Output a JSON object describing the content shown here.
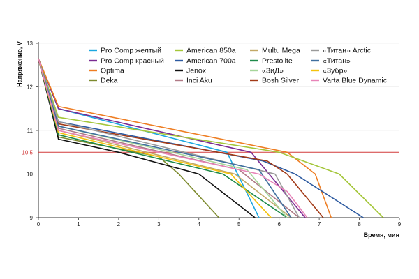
{
  "chart_data": {
    "type": "line",
    "title": "",
    "xlabel": "Время, мин",
    "ylabel": "Напряжение, V",
    "xlim": [
      0,
      9
    ],
    "ylim": [
      9,
      13
    ],
    "xticks": [
      "0",
      "1",
      "2",
      "3",
      "4",
      "5",
      "6",
      "7",
      "8",
      "9"
    ],
    "yticks": [
      "9",
      "10",
      "11",
      "12",
      "13"
    ],
    "reference_line": {
      "y": 10.5,
      "label": "10,5",
      "color": "#d23a3a"
    },
    "legend_position": "top-center",
    "series": [
      {
        "name": "Pro Comp желтый",
        "color": "#1ba7e0",
        "points": [
          [
            0,
            12.65
          ],
          [
            0.5,
            11.5
          ],
          [
            4.7,
            10.5
          ],
          [
            5.5,
            9
          ]
        ]
      },
      {
        "name": "Pro Comp красный",
        "color": "#7b2b92",
        "points": [
          [
            0,
            12.65
          ],
          [
            0.5,
            11.5
          ],
          [
            5.3,
            10.5
          ],
          [
            6.65,
            9
          ]
        ]
      },
      {
        "name": "Optima",
        "color": "#ee7d22",
        "points": [
          [
            0,
            12.65
          ],
          [
            0.5,
            11.55
          ],
          [
            6.2,
            10.5
          ],
          [
            6.9,
            10
          ],
          [
            7.3,
            9
          ]
        ]
      },
      {
        "name": "Deka",
        "color": "#7d8a2e",
        "points": [
          [
            0,
            12.65
          ],
          [
            0.5,
            10.85
          ],
          [
            3.0,
            10.4
          ],
          [
            3.5,
            10
          ],
          [
            4.5,
            9
          ]
        ]
      },
      {
        "name": "American 850a",
        "color": "#a4c639",
        "points": [
          [
            0,
            12.65
          ],
          [
            0.5,
            11.3
          ],
          [
            6.0,
            10.5
          ],
          [
            7.5,
            10
          ],
          [
            8.6,
            9
          ]
        ]
      },
      {
        "name": "American 700a",
        "color": "#2d5aa0",
        "points": [
          [
            0,
            12.65
          ],
          [
            0.5,
            11.2
          ],
          [
            5.6,
            10.3
          ],
          [
            6.4,
            10
          ],
          [
            8.1,
            9
          ]
        ]
      },
      {
        "name": "Jenox",
        "color": "#111111",
        "points": [
          [
            0,
            12.65
          ],
          [
            0.5,
            10.8
          ],
          [
            2.0,
            10.5
          ],
          [
            4.0,
            10
          ],
          [
            5.4,
            9
          ]
        ]
      },
      {
        "name": "Inci Aku",
        "color": "#b07a86",
        "points": [
          [
            0,
            12.65
          ],
          [
            0.5,
            11.05
          ],
          [
            5.0,
            10.1
          ],
          [
            6.5,
            9
          ]
        ]
      },
      {
        "name": "Multu Mega",
        "color": "#c2a866",
        "points": [
          [
            0,
            12.65
          ],
          [
            0.5,
            11.0
          ],
          [
            4.9,
            10.0
          ],
          [
            6.3,
            9
          ]
        ]
      },
      {
        "name": "Prestolite",
        "color": "#1e8a4a",
        "points": [
          [
            0,
            12.65
          ],
          [
            0.5,
            10.9
          ],
          [
            4.6,
            10.0
          ],
          [
            6.2,
            9
          ]
        ]
      },
      {
        "name": "«ЗиД»",
        "color": "#a6d59a",
        "points": [
          [
            0,
            12.65
          ],
          [
            0.5,
            11.1
          ],
          [
            5.2,
            10.1
          ],
          [
            6.2,
            9
          ]
        ]
      },
      {
        "name": "Bosh Silver",
        "color": "#a23a17",
        "points": [
          [
            0,
            12.65
          ],
          [
            0.5,
            11.15
          ],
          [
            5.7,
            10.3
          ],
          [
            6.2,
            10.0
          ],
          [
            7.1,
            9
          ]
        ]
      },
      {
        "name": "«Титан» Arctic",
        "color": "#9a9a9a",
        "points": [
          [
            0,
            12.65
          ],
          [
            0.5,
            11.2
          ],
          [
            5.9,
            10.0
          ],
          [
            6.5,
            9
          ]
        ]
      },
      {
        "name": "«Титан»",
        "color": "#3f6f9e",
        "points": [
          [
            0,
            12.65
          ],
          [
            0.5,
            11.1
          ],
          [
            5.5,
            10.1
          ],
          [
            6.3,
            9
          ]
        ]
      },
      {
        "name": "«Зубр»",
        "color": "#f4c20d",
        "points": [
          [
            0,
            12.65
          ],
          [
            0.5,
            10.95
          ],
          [
            4.8,
            10.0
          ],
          [
            5.8,
            9
          ]
        ]
      },
      {
        "name": "Varta Blue Dynamic",
        "color": "#e884b8",
        "points": [
          [
            0,
            12.65
          ],
          [
            0.5,
            11.0
          ],
          [
            5.5,
            10.0
          ],
          [
            6.2,
            9.6
          ],
          [
            6.7,
            9
          ]
        ]
      }
    ]
  }
}
